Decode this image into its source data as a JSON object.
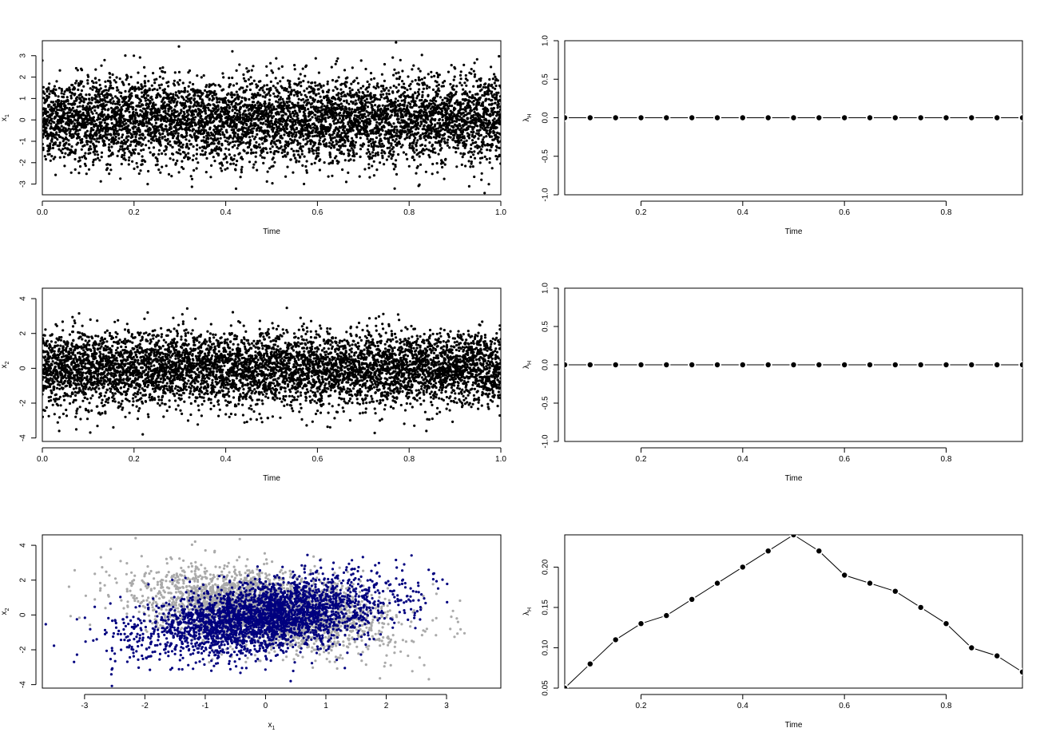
{
  "colors": {
    "points": "#000000",
    "regime_a": "#aaaaaa",
    "regime_b": "#00007f",
    "line": "#000000"
  },
  "chart_data": [
    {
      "type": "scatter",
      "xlabel": "Time",
      "ylabel": "x",
      "ylabel_sub": "1",
      "xlim": [
        0,
        1
      ],
      "ylim": [
        -3.5,
        3.7
      ],
      "xticks": [
        "0.0",
        "0.2",
        "0.4",
        "0.6",
        "0.8",
        "1.0"
      ],
      "yticks": [
        "-3",
        "-2",
        "-1",
        "0",
        "1",
        "2",
        "3"
      ],
      "n_points": 6000,
      "series": [
        {
          "mean": 0,
          "sd": 1,
          "color": "#000000"
        }
      ]
    },
    {
      "type": "line",
      "xlabel": "Time",
      "ylabel": "λ",
      "ylabel_sub": "H",
      "xlim": [
        0.05,
        0.95
      ],
      "ylim": [
        -1.0,
        1.0
      ],
      "xticks": [
        "0.2",
        "0.4",
        "0.6",
        "0.8"
      ],
      "yticks": [
        "-1.0",
        "-0.5",
        "0.0",
        "0.5",
        "1.0"
      ],
      "x": [
        0.05,
        0.1,
        0.15,
        0.2,
        0.25,
        0.3,
        0.35,
        0.4,
        0.45,
        0.5,
        0.55,
        0.6,
        0.65,
        0.7,
        0.75,
        0.8,
        0.85,
        0.9,
        0.95
      ],
      "y": [
        0,
        0,
        0,
        0,
        0,
        0,
        0,
        0,
        0,
        0,
        0,
        0,
        0,
        0,
        0,
        0,
        0,
        0,
        0
      ]
    },
    {
      "type": "scatter",
      "xlabel": "Time",
      "ylabel": "x",
      "ylabel_sub": "2",
      "xlim": [
        0,
        1
      ],
      "ylim": [
        -4.2,
        4.6
      ],
      "xticks": [
        "0.0",
        "0.2",
        "0.4",
        "0.6",
        "0.8",
        "1.0"
      ],
      "yticks": [
        "-4",
        "-2",
        "0",
        "2",
        "4"
      ],
      "n_points": 6000,
      "series": [
        {
          "mean": 0,
          "sd": 1.05,
          "color": "#000000"
        }
      ]
    },
    {
      "type": "line",
      "xlabel": "Time",
      "ylabel": "λ",
      "ylabel_sub": "H",
      "xlim": [
        0.05,
        0.95
      ],
      "ylim": [
        -1.0,
        1.0
      ],
      "xticks": [
        "0.2",
        "0.4",
        "0.6",
        "0.8"
      ],
      "yticks": [
        "-1.0",
        "-0.5",
        "0.0",
        "0.5",
        "1.0"
      ],
      "x": [
        0.05,
        0.1,
        0.15,
        0.2,
        0.25,
        0.3,
        0.35,
        0.4,
        0.45,
        0.5,
        0.55,
        0.6,
        0.65,
        0.7,
        0.75,
        0.8,
        0.85,
        0.9,
        0.95
      ],
      "y": [
        0,
        0,
        0,
        0,
        0,
        0,
        0,
        0,
        0,
        0,
        0,
        0,
        0,
        0,
        0,
        0,
        0,
        0,
        0
      ]
    },
    {
      "type": "scatter",
      "xlabel": "x",
      "xlabel_sub": "1",
      "ylabel": "x",
      "ylabel_sub": "2",
      "xlim": [
        -3.7,
        3.9
      ],
      "ylim": [
        -4.2,
        4.6
      ],
      "xticks": [
        "-3",
        "-2",
        "-1",
        "0",
        "1",
        "2",
        "3"
      ],
      "yticks": [
        "-4",
        "-2",
        "0",
        "2",
        "4"
      ],
      "series": [
        {
          "n_points": 3000,
          "mean_x": 0,
          "mean_y": 0.3,
          "sd_x": 1.0,
          "sd_y": 1.1,
          "corr": -0.35,
          "color": "#aaaaaa"
        },
        {
          "n_points": 3000,
          "mean_x": 0,
          "mean_y": -0.1,
          "sd_x": 1.0,
          "sd_y": 1.1,
          "corr": 0.45,
          "color": "#00007f"
        }
      ]
    },
    {
      "type": "line",
      "xlabel": "Time",
      "ylabel": "λ",
      "ylabel_sub": "H",
      "xlim": [
        0.05,
        0.95
      ],
      "ylim": [
        0.05,
        0.24
      ],
      "xticks": [
        "0.2",
        "0.4",
        "0.6",
        "0.8"
      ],
      "yticks": [
        "0.05",
        "0.10",
        "0.15",
        "0.20"
      ],
      "x": [
        0.05,
        0.1,
        0.15,
        0.2,
        0.25,
        0.3,
        0.35,
        0.4,
        0.45,
        0.5,
        0.55,
        0.6,
        0.65,
        0.7,
        0.75,
        0.8,
        0.85,
        0.9,
        0.95
      ],
      "y": [
        0.05,
        0.08,
        0.11,
        0.13,
        0.14,
        0.16,
        0.18,
        0.2,
        0.22,
        0.24,
        0.22,
        0.19,
        0.18,
        0.17,
        0.15,
        0.13,
        0.1,
        0.09,
        0.07
      ]
    }
  ]
}
